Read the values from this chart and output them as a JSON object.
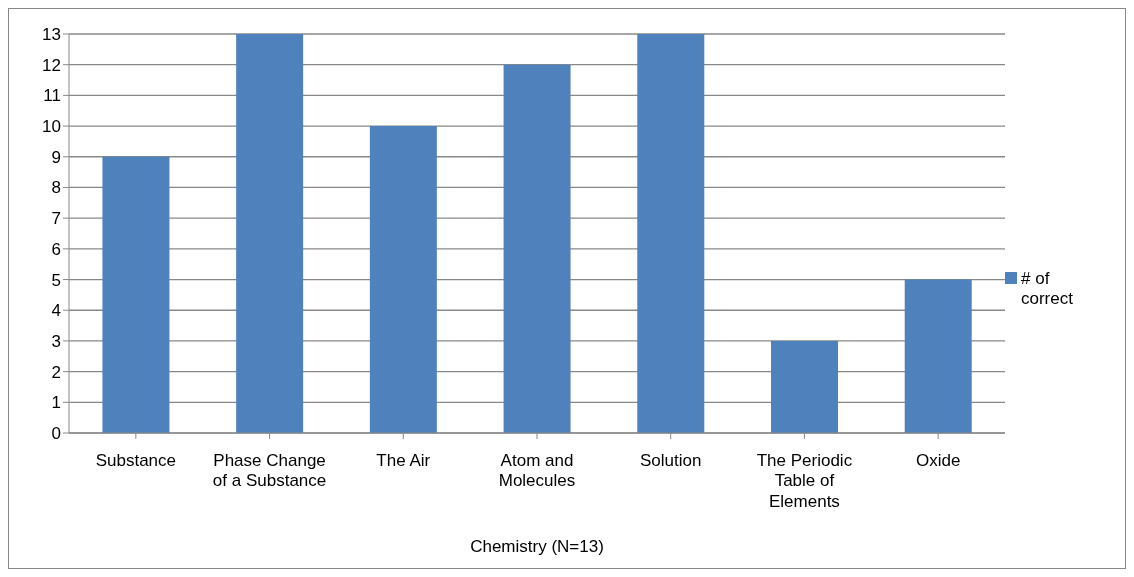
{
  "chart_data": {
    "type": "bar",
    "xlabel": "Chemistry (N=13)",
    "categories": [
      "Substance",
      "Phase Change of a Substance",
      "The Air",
      "Atom and Molecules",
      "Solution",
      "The Periodic Table of Elements",
      "Oxide"
    ],
    "series": [
      {
        "name": "# of correct",
        "color": "#4f81bd",
        "values": [
          9,
          13,
          10,
          12,
          13,
          3,
          5
        ]
      }
    ],
    "ylim": [
      0,
      13
    ],
    "yticks": [
      0,
      1,
      2,
      3,
      4,
      5,
      6,
      7,
      8,
      9,
      10,
      11,
      12,
      13
    ],
    "grid": "y",
    "legend": "right"
  }
}
